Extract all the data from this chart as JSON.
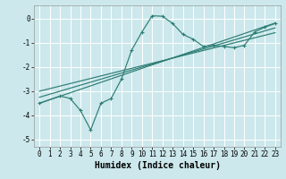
{
  "xlabel": "Humidex (Indice chaleur)",
  "bg_color": "#cce8ec",
  "line_color": "#2d7d74",
  "grid_color": "#ffffff",
  "xlim": [
    -0.5,
    23.5
  ],
  "ylim": [
    -5.3,
    0.55
  ],
  "xticks": [
    0,
    1,
    2,
    3,
    4,
    5,
    6,
    7,
    8,
    9,
    10,
    11,
    12,
    13,
    14,
    15,
    16,
    17,
    18,
    19,
    20,
    21,
    22,
    23
  ],
  "yticks": [
    0,
    -1,
    -2,
    -3,
    -4,
    -5
  ],
  "zigzag_x": [
    0,
    2,
    3,
    4,
    5,
    6,
    7,
    8,
    9,
    10,
    11,
    12,
    13,
    14,
    15,
    16,
    17,
    18,
    19,
    20,
    21,
    22,
    23
  ],
  "zigzag_y": [
    -3.5,
    -3.2,
    -3.3,
    -3.8,
    -4.6,
    -3.5,
    -3.3,
    -2.5,
    -1.3,
    -0.55,
    0.12,
    0.1,
    -0.2,
    -0.65,
    -0.85,
    -1.15,
    -1.1,
    -1.15,
    -1.2,
    -1.1,
    -0.55,
    -0.35,
    -0.2
  ],
  "line1_x": [
    0,
    23
  ],
  "line1_y": [
    -3.5,
    -0.18
  ],
  "line2_x": [
    0,
    23
  ],
  "line2_y": [
    -3.25,
    -0.38
  ],
  "line3_x": [
    0,
    23
  ],
  "line3_y": [
    -3.0,
    -0.58
  ],
  "xlabel_fontsize": 7,
  "tick_fontsize": 5.5,
  "linewidth": 0.85,
  "markersize": 3.5
}
